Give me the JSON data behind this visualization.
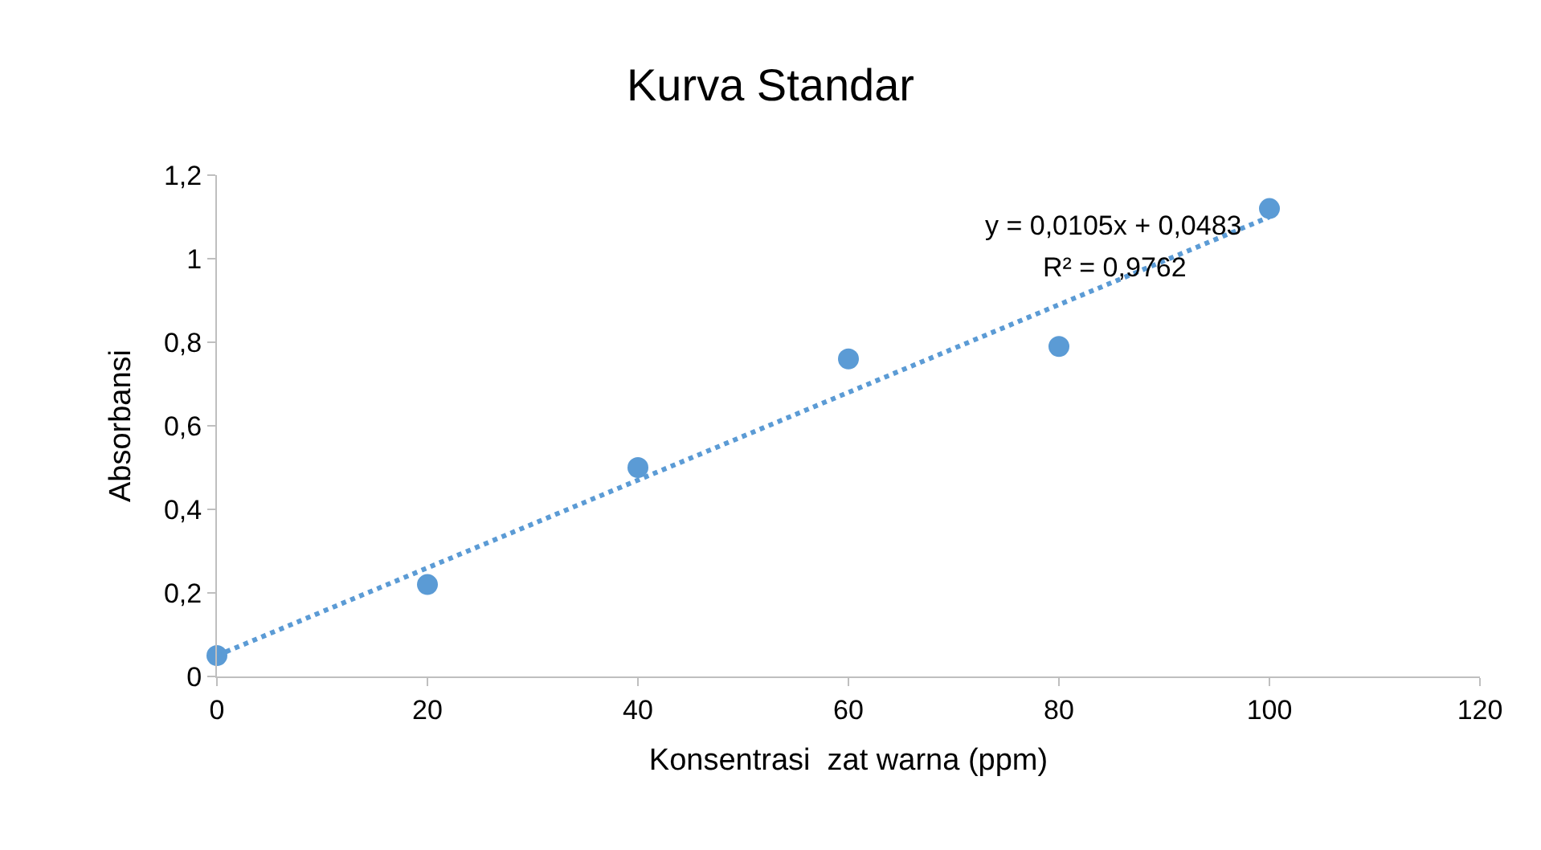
{
  "chart_data": {
    "type": "scatter",
    "title": "Kurva Standar",
    "xlabel": "Konsentrasi  zat warna (ppm)",
    "ylabel": "Absorbansi",
    "x": [
      0,
      20,
      40,
      60,
      80,
      100
    ],
    "series": [
      {
        "color": "#5b9bd5",
        "marker": "circle",
        "values": [
          0.05,
          0.22,
          0.5,
          0.76,
          0.79,
          1.12
        ]
      },
      {
        "type": "line",
        "color": "#5b9bd5",
        "line_style": "dotted",
        "marker": "none",
        "x": [
          0,
          100
        ],
        "values": [
          0.05,
          1.1
        ]
      }
    ],
    "xlim": [
      0,
      120
    ],
    "xticks": [
      0,
      20,
      40,
      60,
      80,
      100,
      120
    ],
    "ylim": [
      0,
      1.2
    ],
    "yticks": [
      0,
      {
        "value": 0.2,
        "label": "0,2"
      },
      {
        "value": 0.4,
        "label": "0,4"
      },
      {
        "value": 0.6,
        "label": "0,6"
      },
      {
        "value": 0.8,
        "label": "0,8"
      },
      1,
      {
        "value": 1.2,
        "label": "1,2"
      }
    ],
    "annotations": [
      "y = 0,0105x + 0,0483",
      "R² = 0,9762"
    ]
  }
}
